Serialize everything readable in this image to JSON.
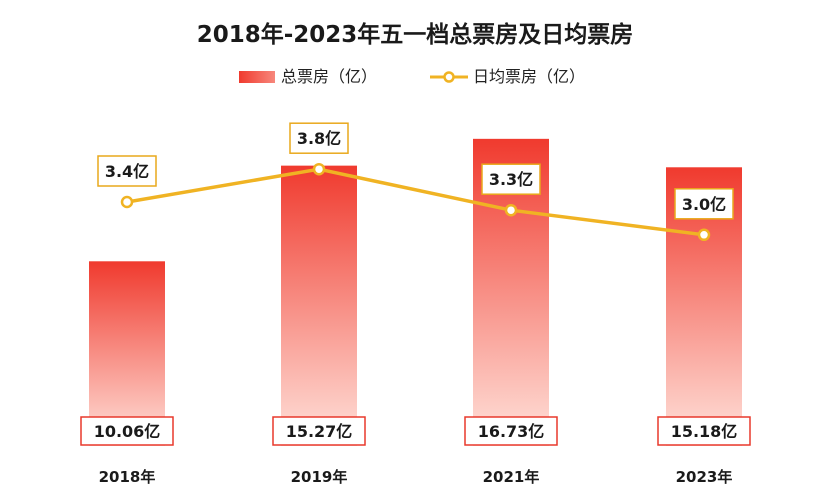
{
  "chart_data": {
    "type": "bar",
    "title": "2018年-2023年五一档总票房及日均票房",
    "categories": [
      "2018年",
      "2019年",
      "2021年",
      "2023年"
    ],
    "xlabel": "",
    "ylabel": "",
    "grid": false,
    "legend_position": "top-center",
    "series": [
      {
        "name": "总票房（亿）",
        "type": "bar",
        "values": [
          10.06,
          15.27,
          16.73,
          15.18
        ],
        "labels": [
          "10.06亿",
          "15.27亿",
          "16.73亿",
          "15.18亿"
        ],
        "color": "#f03a2e"
      },
      {
        "name": "日均票房（亿）",
        "type": "line",
        "values": [
          3.4,
          3.8,
          3.3,
          3.0
        ],
        "labels": [
          "3.4亿",
          "3.8亿",
          "3.3亿",
          "3.0亿"
        ],
        "color": "#f0b323"
      }
    ],
    "colors": {
      "bar_top": "#f03a2e",
      "bar_bottom": "#ffe3dc",
      "bar_label_border": "#e8392c",
      "line": "#f0b323",
      "line_label_border": "#e9a81c"
    }
  }
}
